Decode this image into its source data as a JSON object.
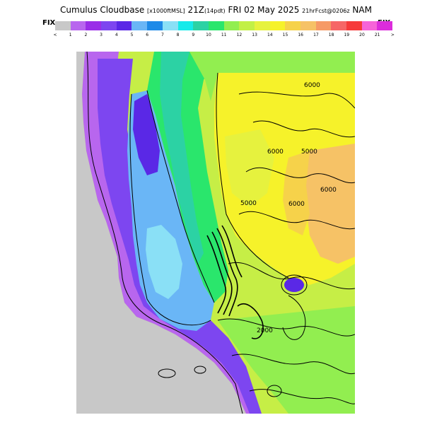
{
  "header": {
    "product": "Cumulus Cloudbase",
    "units": "[x1000ftMSL]",
    "valid": "21Z",
    "local": "(14pdt)",
    "date": "FRI 02 May 2025",
    "forecast": "21hrFcst@0206z",
    "model": "NAM"
  },
  "colorbar": {
    "left_label": "FIX",
    "right_label": "FIX",
    "colors": [
      "#c8c8c8",
      "#b866ee",
      "#9a2ee8",
      "#7d46f0",
      "#5a28e6",
      "#6ab6f6",
      "#1e8ae8",
      "#8ae0f6",
      "#16eaea",
      "#2cd2a4",
      "#2ae66c",
      "#92ee50",
      "#c2f046",
      "#e6f23e",
      "#f6f22a",
      "#f6d24a",
      "#f6c266",
      "#f69a66",
      "#f66666",
      "#f63a3a",
      "#f664d8",
      "#dc2cdc"
    ],
    "tick_labels": [
      "<",
      "1",
      "2",
      "3",
      "4",
      "5",
      "6",
      "7",
      "8",
      "9",
      "10",
      "11",
      "12",
      "13",
      "14",
      "15",
      "16",
      "17",
      "18",
      "19",
      "20",
      "21",
      ">"
    ]
  },
  "map": {
    "contour_labels": [
      "6000",
      "6000",
      "5000",
      "6000",
      "5000",
      "6000",
      "2000"
    ]
  }
}
